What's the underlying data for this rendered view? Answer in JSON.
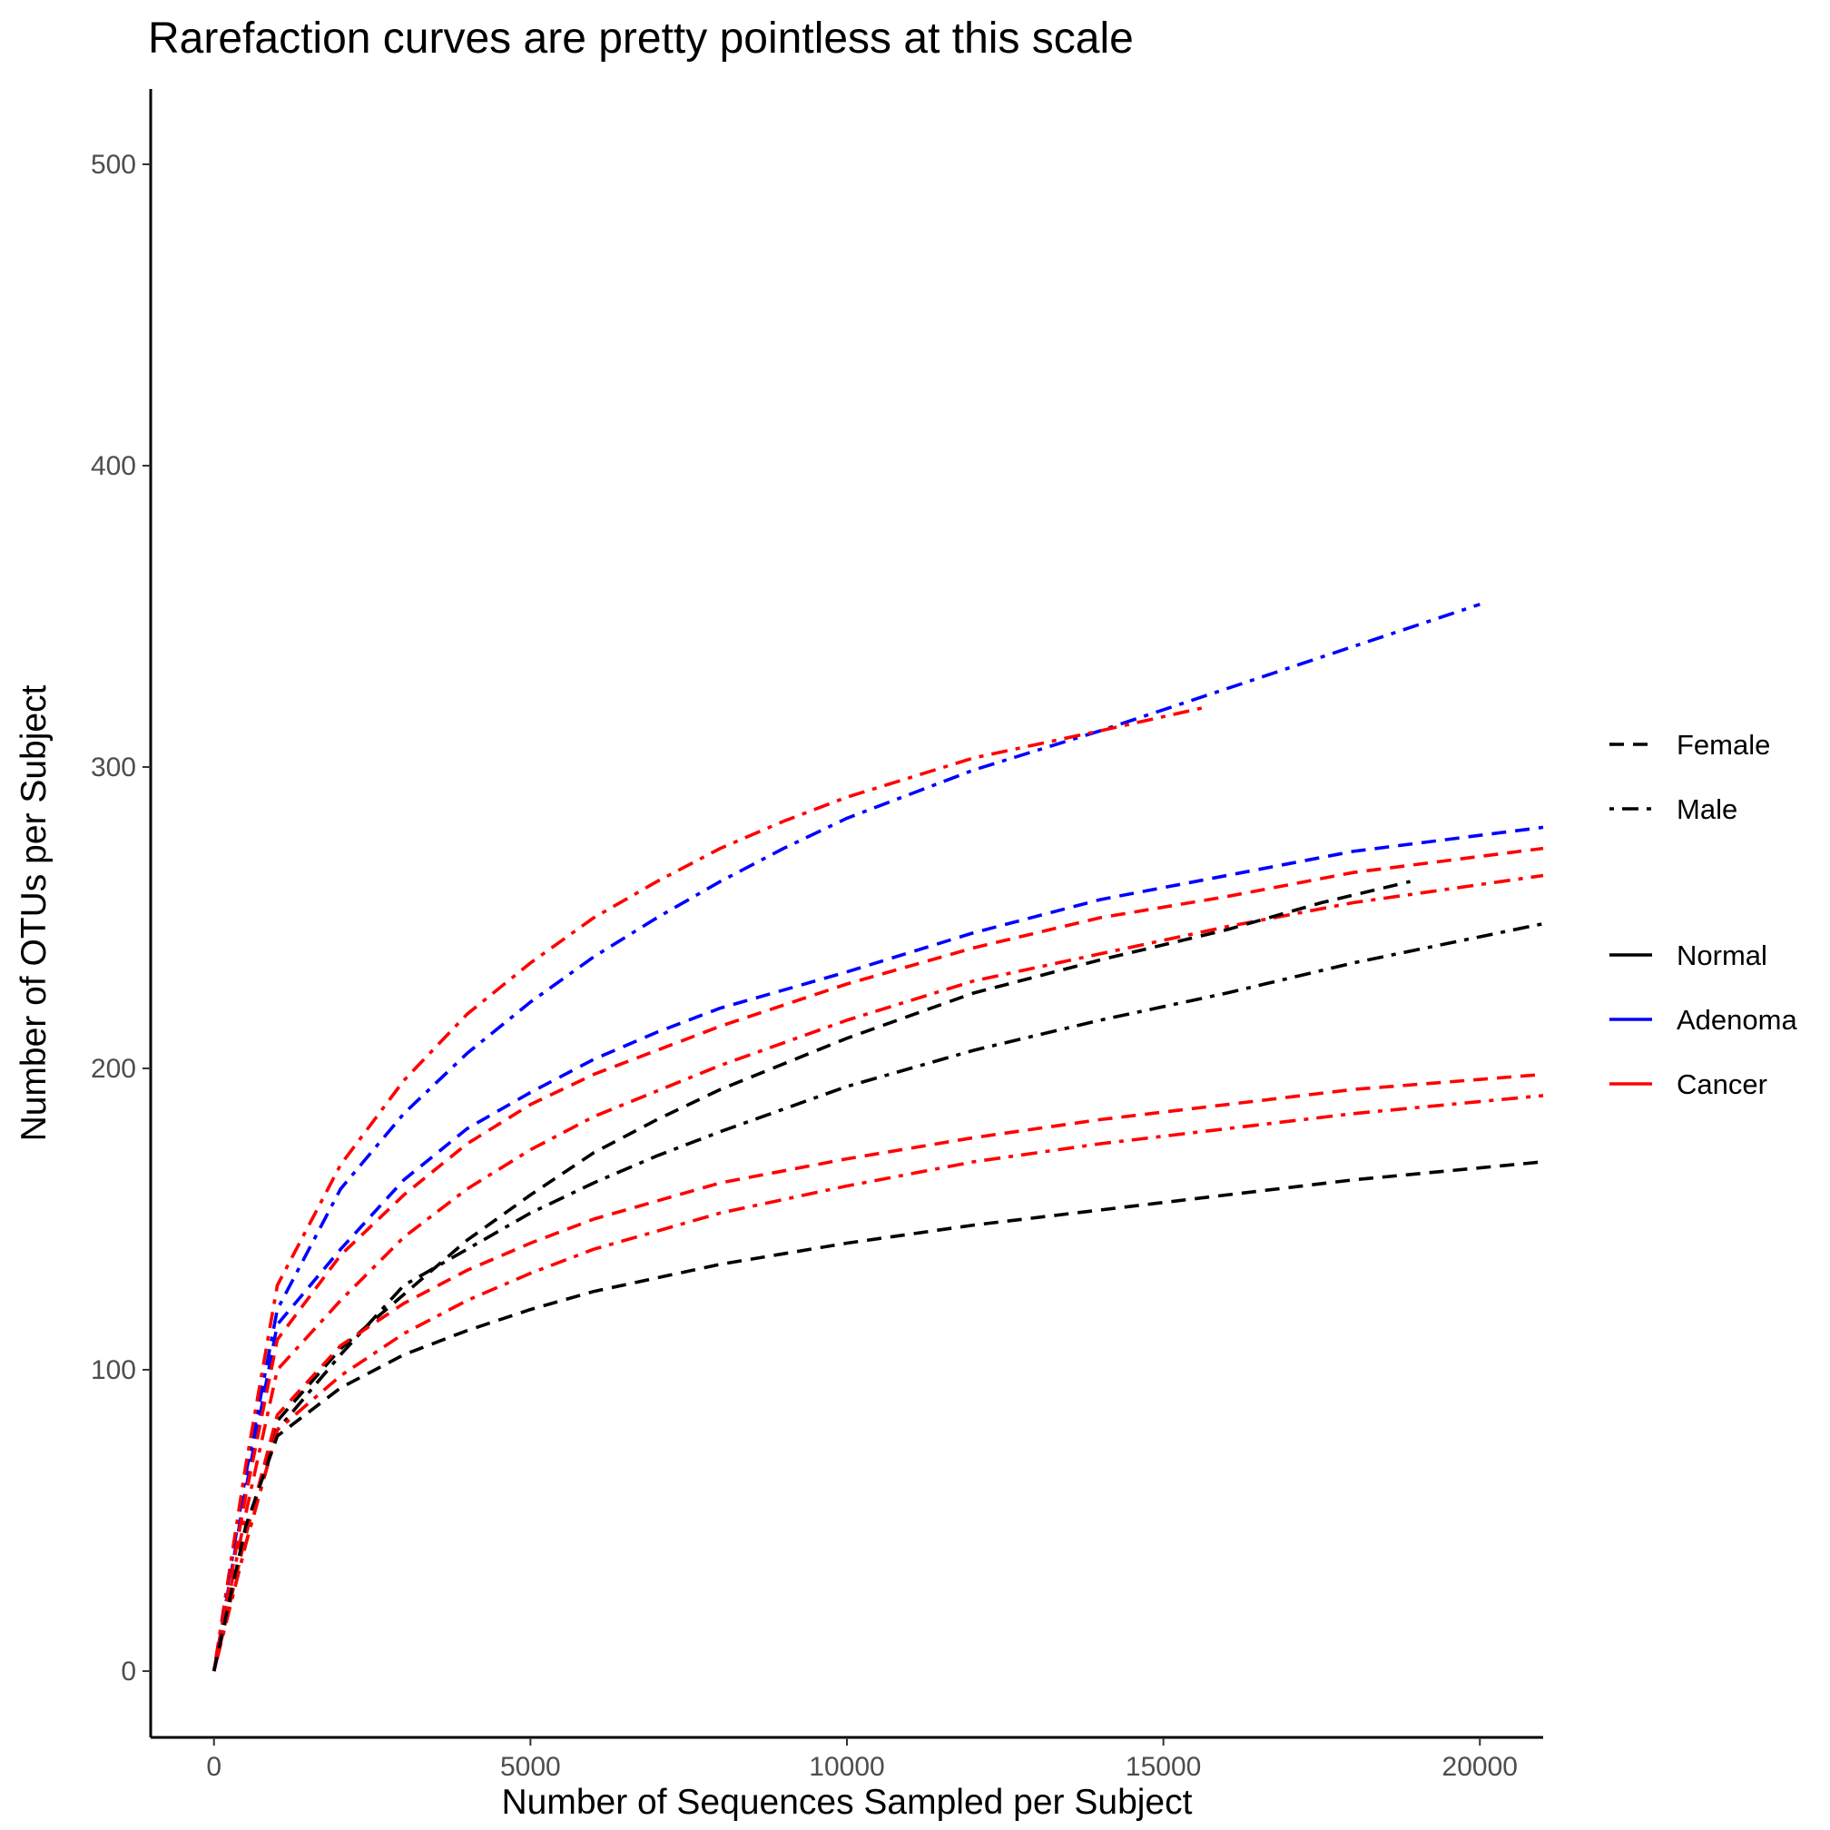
{
  "chart_data": {
    "type": "line",
    "title": "Rarefaction curves are pretty pointless at this scale",
    "xlabel": "Number of Sequences Sampled per Subject",
    "ylabel": "Number of OTUs per Subject",
    "xlim": [
      -1000,
      21000
    ],
    "ylim": [
      -22,
      525
    ],
    "x_ticks": [
      0,
      5000,
      10000,
      15000,
      20000
    ],
    "y_ticks": [
      0,
      100,
      200,
      300,
      400,
      500
    ],
    "x_tick_labels": [
      "0",
      "5000",
      "10000",
      "15000",
      "20000"
    ],
    "y_tick_labels": [
      "0",
      "100",
      "200",
      "300",
      "400",
      "500"
    ],
    "grid": false,
    "legend_position": "right",
    "legend": {
      "linetype": [
        {
          "label": "Female",
          "dash": "dashed"
        },
        {
          "label": "Male",
          "dash": "dotdash"
        }
      ],
      "color": [
        {
          "label": "Normal",
          "color": "#000000"
        },
        {
          "label": "Adenoma",
          "color": "#0000ff"
        },
        {
          "label": "Cancer",
          "color": "#ff0000"
        }
      ]
    },
    "series": [
      {
        "group": "Adenoma",
        "sex": "Male",
        "color": "#0000ff",
        "dash": "dotdash",
        "x": [
          0,
          500,
          1000,
          2000,
          3000,
          4000,
          5000,
          6000,
          7000,
          8000,
          9000,
          10000,
          12000,
          14000,
          16000,
          18000,
          20000
        ],
        "y": [
          0,
          65,
          120,
          160,
          185,
          205,
          222,
          237,
          250,
          262,
          273,
          283,
          299,
          312,
          326,
          340,
          354
        ]
      },
      {
        "group": "Cancer",
        "sex": "Male",
        "color": "#ff0000",
        "dash": "dotdash",
        "x": [
          0,
          500,
          1000,
          2000,
          3000,
          4000,
          5000,
          6000,
          7000,
          8000,
          9000,
          10000,
          12000,
          14000,
          15700
        ],
        "y": [
          0,
          68,
          128,
          168,
          196,
          218,
          235,
          250,
          262,
          273,
          282,
          290,
          303,
          312,
          320
        ]
      },
      {
        "group": "Adenoma",
        "sex": "Female",
        "color": "#0000ff",
        "dash": "dashed",
        "x": [
          0,
          500,
          1000,
          2000,
          3000,
          4000,
          5000,
          6000,
          7000,
          8000,
          10000,
          12000,
          14000,
          16000,
          18000,
          21000
        ],
        "y": [
          0,
          60,
          115,
          140,
          163,
          180,
          192,
          203,
          212,
          220,
          232,
          245,
          256,
          264,
          272,
          280
        ]
      },
      {
        "group": "Cancer",
        "sex": "Female",
        "color": "#ff0000",
        "dash": "dashed",
        "x": [
          0,
          500,
          1000,
          2000,
          3000,
          4000,
          5000,
          6000,
          8000,
          10000,
          12000,
          14000,
          16000,
          18000,
          21000
        ],
        "y": [
          0,
          58,
          110,
          138,
          158,
          175,
          188,
          198,
          214,
          228,
          240,
          250,
          257,
          265,
          273
        ]
      },
      {
        "group": "Cancer",
        "sex": "Male",
        "color": "#ff0000",
        "dash": "dotdash",
        "x": [
          0,
          500,
          1000,
          2000,
          3000,
          4000,
          5000,
          6000,
          8000,
          10000,
          12000,
          14000,
          16000,
          18000,
          21000
        ],
        "y": [
          0,
          52,
          100,
          123,
          144,
          160,
          173,
          184,
          201,
          216,
          229,
          238,
          247,
          255,
          264
        ]
      },
      {
        "group": "Normal",
        "sex": "Female",
        "color": "#000000",
        "dash": "dashed",
        "x": [
          0,
          500,
          1000,
          2000,
          3000,
          4000,
          5000,
          6000,
          7000,
          8000,
          10000,
          12000,
          14000,
          16000,
          17500,
          18900
        ],
        "y": [
          0,
          45,
          83,
          107,
          125,
          143,
          158,
          172,
          183,
          193,
          210,
          225,
          236,
          246,
          255,
          262
        ]
      },
      {
        "group": "Normal",
        "sex": "Male",
        "color": "#000000",
        "dash": "dotdash",
        "x": [
          0,
          500,
          1000,
          2000,
          3000,
          4000,
          5000,
          6000,
          7000,
          8000,
          10000,
          12000,
          14000,
          16000,
          18000,
          21000
        ],
        "y": [
          0,
          42,
          80,
          105,
          128,
          140,
          152,
          162,
          171,
          179,
          194,
          206,
          216,
          225,
          235,
          248
        ]
      },
      {
        "group": "Cancer",
        "sex": "Female",
        "color": "#ff0000",
        "dash": "dashed",
        "x": [
          0,
          500,
          1000,
          2000,
          3000,
          4000,
          5000,
          6000,
          8000,
          10000,
          12000,
          14000,
          16000,
          18000,
          21000
        ],
        "y": [
          0,
          45,
          85,
          108,
          122,
          133,
          142,
          150,
          162,
          170,
          177,
          183,
          188,
          193,
          198
        ]
      },
      {
        "group": "Cancer",
        "sex": "Male",
        "color": "#ff0000",
        "dash": "dotdash",
        "x": [
          0,
          500,
          1000,
          2000,
          3000,
          4000,
          5000,
          6000,
          8000,
          10000,
          12000,
          14000,
          16000,
          18000,
          21000
        ],
        "y": [
          0,
          42,
          80,
          98,
          112,
          123,
          132,
          140,
          152,
          161,
          169,
          175,
          180,
          185,
          191
        ]
      },
      {
        "group": "Normal",
        "sex": "Female",
        "color": "#000000",
        "dash": "dashed",
        "x": [
          0,
          500,
          1000,
          2000,
          3000,
          4000,
          5000,
          6000,
          8000,
          10000,
          12000,
          14000,
          16000,
          18000,
          21000
        ],
        "y": [
          0,
          48,
          78,
          94,
          105,
          113,
          120,
          126,
          135,
          142,
          148,
          153,
          158,
          163,
          169
        ]
      }
    ]
  }
}
